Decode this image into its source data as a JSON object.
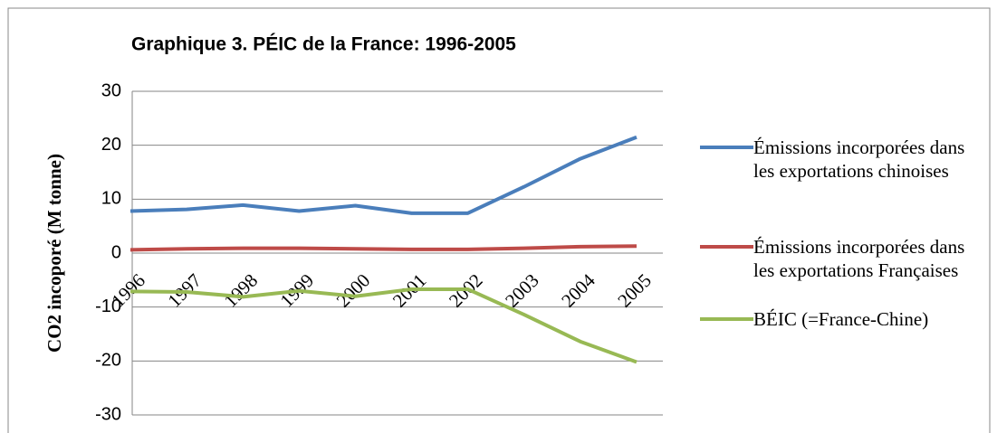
{
  "chart_data": {
    "type": "line",
    "title": "Graphique 3. PÉIC de la France: 1996-2005",
    "y_label": "CO2 incoporé (M tonne)",
    "categories": [
      "1996",
      "1997",
      "1998",
      "1999",
      "2000",
      "2001",
      "2002",
      "2003",
      "2004",
      "2005"
    ],
    "series": [
      {
        "name": "Émissions incorporées dans les exportations chinoises",
        "color": "#4a7ebb",
        "values": [
          7.8,
          8.1,
          8.9,
          7.8,
          8.8,
          7.4,
          7.4,
          12.3,
          17.5,
          21.5
        ]
      },
      {
        "name": "Émissions incorporées dans les exportations Françaises",
        "color": "#be4b48",
        "values": [
          0.6,
          0.8,
          0.9,
          0.9,
          0.8,
          0.7,
          0.7,
          0.9,
          1.2,
          1.3
        ]
      },
      {
        "name": "BÉIC (=France-Chine)",
        "color": "#98b954",
        "values": [
          -7.1,
          -7.2,
          -8.1,
          -7.0,
          -8.0,
          -6.7,
          -6.7,
          -11.4,
          -16.4,
          -20.2
        ]
      }
    ],
    "ylim": [
      -30,
      30
    ],
    "yticks": [
      -30,
      -20,
      -10,
      0,
      10,
      20,
      30
    ],
    "grid": true,
    "legend": "right"
  }
}
